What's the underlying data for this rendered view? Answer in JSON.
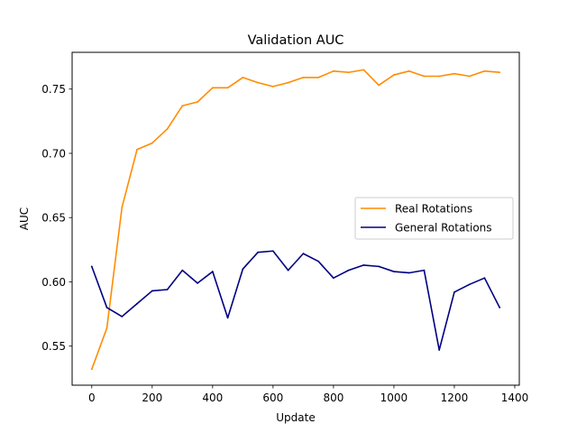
{
  "chart_data": {
    "type": "line",
    "title": "Validation AUC",
    "xlabel": "Update",
    "ylabel": "AUC",
    "xlim": [
      -65,
      1415
    ],
    "ylim": [
      0.5196,
      0.7786
    ],
    "xticks": [
      0,
      200,
      400,
      600,
      800,
      1000,
      1200,
      1400
    ],
    "yticks": [
      0.55,
      0.6,
      0.65,
      0.7,
      0.75
    ],
    "grid": false,
    "legend_position": "center-right",
    "x": [
      0,
      50,
      100,
      150,
      200,
      250,
      300,
      350,
      400,
      450,
      500,
      550,
      600,
      650,
      700,
      750,
      800,
      850,
      900,
      950,
      1000,
      1050,
      1100,
      1150,
      1200,
      1250,
      1300,
      1350
    ],
    "series": [
      {
        "name": "Real Rotations",
        "color": "#ff8c00",
        "values": [
          0.532,
          0.564,
          0.658,
          0.703,
          0.708,
          0.719,
          0.737,
          0.74,
          0.751,
          0.751,
          0.759,
          0.755,
          0.752,
          0.755,
          0.759,
          0.759,
          0.764,
          0.763,
          0.765,
          0.753,
          0.761,
          0.764,
          0.76,
          0.76,
          0.762,
          0.76,
          0.764,
          0.763
        ]
      },
      {
        "name": "General Rotations",
        "color": "#000080",
        "values": [
          0.612,
          0.58,
          0.573,
          0.583,
          0.593,
          0.594,
          0.609,
          0.599,
          0.608,
          0.572,
          0.61,
          0.623,
          0.624,
          0.609,
          0.622,
          0.616,
          0.603,
          0.609,
          0.613,
          0.612,
          0.608,
          0.607,
          0.609,
          0.547,
          0.592,
          0.598,
          0.603,
          0.58
        ]
      }
    ]
  }
}
